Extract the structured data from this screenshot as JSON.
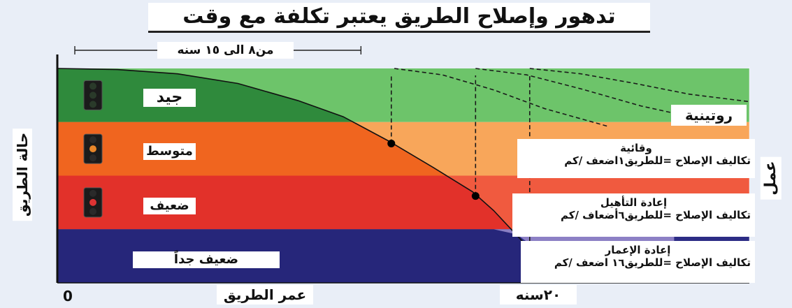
{
  "title": "تدهور وإصلاح الطريق يعتبر تكلفة مع وقت",
  "chart_data": {
    "type": "line",
    "title": "تدهور وإصلاح الطريق يعتبر تكلفة مع وقت",
    "xlabel": "عمر الطريق",
    "ylabel": "حالة الطريق",
    "origin_label": "0",
    "x_tick_label": "٢٠سنه",
    "x_tick_value": 20,
    "xlim": [
      0,
      23
    ],
    "span_label": "من٨ الى ١٥ سنه",
    "span_range": [
      0,
      8
    ],
    "condition_bands": [
      {
        "name": "جيد",
        "range": [
          3,
          4
        ],
        "color": "#2f8a3c"
      },
      {
        "name": "متوسط",
        "range": [
          2,
          3
        ],
        "color": "#f0651f"
      },
      {
        "name": "ضعيف",
        "range": [
          1,
          2
        ],
        "color": "#e2312a"
      },
      {
        "name": "ضعيف جداً",
        "range": [
          0,
          1
        ],
        "color": "#26267a"
      }
    ],
    "ylim": [
      0,
      4
    ],
    "deterioration_curve": {
      "x": [
        0,
        2,
        4,
        6,
        8,
        9.5,
        11,
        12.5,
        13.8,
        14.5,
        15.5,
        17,
        19,
        20.5
      ],
      "y": [
        4,
        3.98,
        3.9,
        3.72,
        3.4,
        3.1,
        2.65,
        2.15,
        1.7,
        1.35,
        0.75,
        0.4,
        0.2,
        0.15
      ]
    },
    "intervention_points": [
      {
        "x": 11.1,
        "y": 2.6
      },
      {
        "x": 13.9,
        "y": 1.62
      },
      {
        "x": 15.7,
        "y": 0.65
      }
    ],
    "restoration_curves": [
      {
        "x": [
          11.2,
          12.8,
          14.5,
          16.2,
          18.3
        ],
        "y": [
          4,
          3.88,
          3.6,
          3.25,
          2.92
        ]
      },
      {
        "x": [
          13.9,
          15.6,
          17.4,
          19.4,
          22
        ],
        "y": [
          4,
          3.88,
          3.62,
          3.3,
          2.98
        ]
      },
      {
        "x": [
          15.7,
          17.4,
          19.2,
          21,
          23
        ],
        "y": [
          4,
          3.9,
          3.72,
          3.52,
          3.38
        ]
      }
    ],
    "annotations": {
      "work": "عمل",
      "routine": "روتينية",
      "actions": [
        {
          "name": "وقائية",
          "cost": "تكاليف الإصلاح =للطريق١اضعف /كم"
        },
        {
          "name": "إعادة التأهيل",
          "cost": "تكاليف الإصلاح =للطريق٦أضعاف /كم"
        },
        {
          "name": "إعادة الإعمار",
          "cost": "تكاليف الإصلاح =للطريق١٦ اضعف /كم"
        }
      ]
    }
  }
}
